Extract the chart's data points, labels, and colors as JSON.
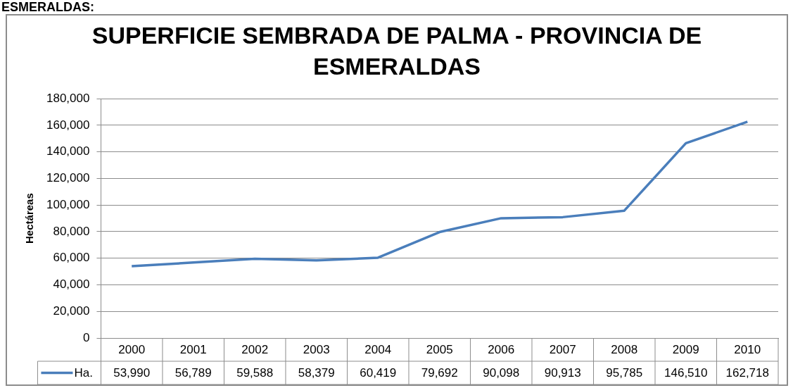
{
  "chart_data": {
    "type": "line",
    "title": "SUPERFICIE SEMBRADA DE PALMA - PROVINCIA DE ESMERALDAS",
    "ylabel": "Hectáreas",
    "annotations": [
      "ESMERALDAS:"
    ],
    "categories": [
      "2000",
      "2001",
      "2002",
      "2003",
      "2004",
      "2005",
      "2006",
      "2007",
      "2008",
      "2009",
      "2010"
    ],
    "series": [
      {
        "name": "Ha.",
        "color": "#4a7ebb",
        "values": [
          53990,
          56789,
          59588,
          58379,
          60419,
          79692,
          90098,
          90913,
          95785,
          146510,
          162718
        ],
        "value_labels": [
          "53,990",
          "56,789",
          "59,588",
          "58,379",
          "60,419",
          "79,692",
          "90,098",
          "90,913",
          "95,785",
          "146,510",
          "162,718"
        ]
      }
    ],
    "ylim": [
      0,
      180000
    ],
    "yticks": [
      0,
      {
        "value": 20000,
        "label": "20,000"
      },
      {
        "value": 40000,
        "label": "40,000"
      },
      {
        "value": 60000,
        "label": "60,000"
      },
      {
        "value": 80000,
        "label": "80,000"
      },
      {
        "value": 100000,
        "label": "100,000"
      },
      {
        "value": 120000,
        "label": "120,000"
      },
      {
        "value": 140000,
        "label": "140,000"
      },
      {
        "value": 160000,
        "label": "160,000"
      },
      {
        "value": 180000,
        "label": "180,000"
      }
    ],
    "grid": "y",
    "marker": "none",
    "line_style": "solid"
  }
}
